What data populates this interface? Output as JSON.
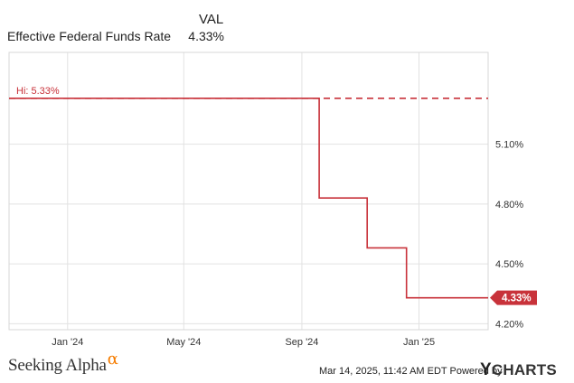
{
  "legend": {
    "column_header": "VAL",
    "series_name": "Effective Federal Funds Rate",
    "series_value": "4.33%"
  },
  "chart_data": {
    "type": "line",
    "series": [
      {
        "name": "Effective Federal Funds Rate",
        "color": "#c8323a",
        "points": [
          {
            "x": "2023-11-01",
            "y": 5.33
          },
          {
            "x": "2024-09-19",
            "y": 5.33
          },
          {
            "x": "2024-09-19",
            "y": 4.83
          },
          {
            "x": "2024-11-08",
            "y": 4.83
          },
          {
            "x": "2024-11-08",
            "y": 4.58
          },
          {
            "x": "2024-12-19",
            "y": 4.58
          },
          {
            "x": "2024-12-19",
            "y": 4.33
          },
          {
            "x": "2025-03-14",
            "y": 4.33
          }
        ]
      }
    ],
    "x_range": [
      "2023-11-01",
      "2025-03-14"
    ],
    "x_ticks": [
      {
        "date": "2024-01-01",
        "label": "Jan '24"
      },
      {
        "date": "2024-05-01",
        "label": "May '24"
      },
      {
        "date": "2024-09-01",
        "label": "Sep '24"
      },
      {
        "date": "2025-01-01",
        "label": "Jan '25"
      }
    ],
    "y_ticks": [
      {
        "value": 5.1,
        "label": "5.10%"
      },
      {
        "value": 4.8,
        "label": "4.80%"
      },
      {
        "value": 4.5,
        "label": "4.50%"
      },
      {
        "value": 4.2,
        "label": "4.20%"
      }
    ],
    "ylim": [
      4.17,
      5.56
    ],
    "high": {
      "value": 5.33,
      "label": "Hi: 5.33%"
    },
    "last": {
      "value": 4.33,
      "label": "4.33%"
    },
    "grid": true,
    "y_axis_side": "right"
  },
  "footer": {
    "brand": "Seeking Alpha",
    "brand_symbol": "α",
    "timestamp": "Mar 14, 2025, 11:42 AM EDT Powered by",
    "provider_y": "Y",
    "provider_rest": "CHARTS"
  }
}
